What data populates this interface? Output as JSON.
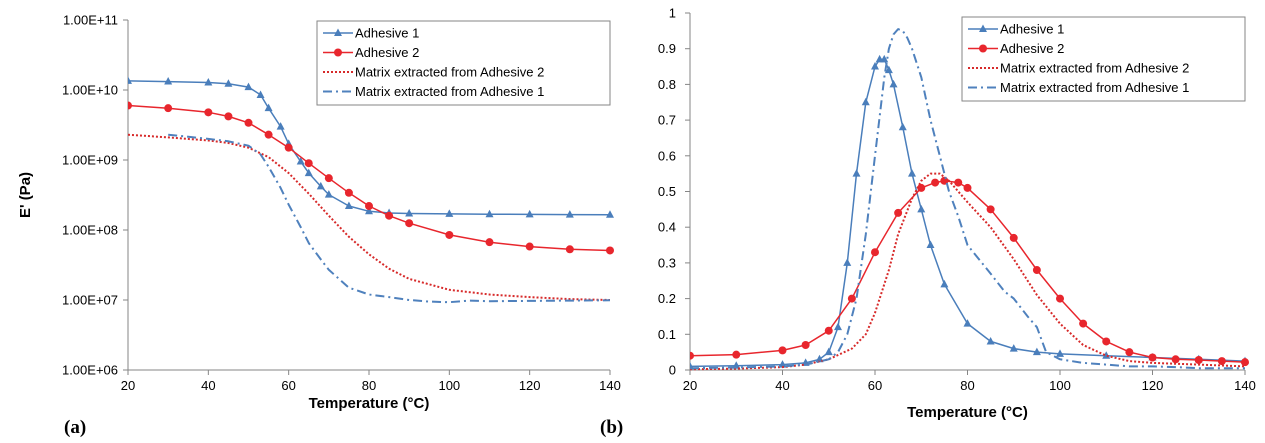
{
  "chart_data": [
    {
      "type": "line",
      "panel_label": "(a)",
      "title": "",
      "xlabel": "Temperature (°C)",
      "ylabel": "E' (Pa)",
      "yscale": "log",
      "xlim": [
        20,
        140
      ],
      "ylim": [
        1000000,
        100000000000
      ],
      "x_ticks": [
        20,
        40,
        60,
        80,
        100,
        120,
        140
      ],
      "x_tick_labels": [
        "20",
        "40",
        "60",
        "80",
        "100",
        "120",
        "140"
      ],
      "y_ticks": [
        1000000,
        10000000,
        100000000,
        1000000000,
        10000000000,
        100000000000
      ],
      "y_tick_labels": [
        "1.00E+06",
        "1.00E+07",
        "1.00E+08",
        "1.00E+09",
        "1.00E+10",
        "1.00E+11"
      ],
      "grid": false,
      "legend_position": "top-right",
      "series": [
        {
          "name": "Adhesive 1",
          "color": "#4a7ebb",
          "style": "solid",
          "marker": "triangle",
          "x": [
            20,
            30,
            40,
            45,
            50,
            53,
            55,
            58,
            60,
            63,
            65,
            68,
            70,
            75,
            80,
            85,
            90,
            100,
            110,
            120,
            130,
            140
          ],
          "y": [
            13500000000,
            13200000000,
            12800000000,
            12300000000,
            11000000000,
            8500000000,
            5500000000,
            3000000000,
            1700000000,
            950000000,
            650000000,
            420000000,
            320000000,
            220000000,
            185000000,
            175000000,
            172000000,
            170000000,
            168000000,
            167000000,
            166000000,
            165000000
          ]
        },
        {
          "name": "Adhesive 2",
          "color": "#e8262d",
          "style": "solid",
          "marker": "circle",
          "x": [
            20,
            30,
            40,
            45,
            50,
            55,
            60,
            65,
            70,
            75,
            80,
            85,
            90,
            100,
            110,
            120,
            130,
            140
          ],
          "y": [
            6000000000,
            5500000000,
            4800000000,
            4200000000,
            3400000000,
            2300000000,
            1500000000,
            900000000,
            550000000,
            340000000,
            220000000,
            160000000,
            125000000,
            85000000,
            67000000,
            58000000,
            53000000,
            51000000
          ]
        },
        {
          "name": "Matrix extracted from Adhesive 2",
          "color": "#d72a2a",
          "style": "dotted",
          "marker": "none",
          "x": [
            20,
            30,
            40,
            45,
            50,
            55,
            60,
            65,
            70,
            75,
            80,
            85,
            90,
            100,
            110,
            120,
            130,
            140
          ],
          "y": [
            2300000000,
            2100000000,
            1900000000,
            1750000000,
            1500000000,
            1100000000,
            650000000,
            330000000,
            160000000,
            80000000,
            45000000,
            28000000,
            20000000,
            14000000,
            12000000,
            11000000,
            10300000,
            10000000
          ]
        },
        {
          "name": "Matrix extracted from Adhesive 1",
          "color": "#4f81bd",
          "style": "dashdot",
          "marker": "none",
          "x": [
            30,
            40,
            45,
            50,
            53,
            55,
            58,
            60,
            63,
            65,
            68,
            70,
            75,
            80,
            85,
            90,
            95,
            100,
            105,
            110,
            120,
            130,
            140
          ],
          "y": [
            2300000000,
            2000000000,
            1850000000,
            1600000000,
            1200000000,
            800000000,
            400000000,
            230000000,
            110000000,
            65000000,
            38000000,
            27000000,
            15000000,
            12000000,
            11000000,
            10000000,
            9500000,
            9300000,
            9800000,
            9600000,
            9700000,
            9800000,
            9900000
          ]
        }
      ]
    },
    {
      "type": "line",
      "panel_label": "(b)",
      "title": "",
      "xlabel": "Temperature (°C)",
      "ylabel": "",
      "yscale": "linear",
      "xlim": [
        20,
        140
      ],
      "ylim": [
        0,
        1
      ],
      "x_ticks": [
        20,
        40,
        60,
        80,
        100,
        120,
        140
      ],
      "x_tick_labels": [
        "20",
        "40",
        "60",
        "80",
        "100",
        "120",
        "140"
      ],
      "y_ticks": [
        0,
        0.1,
        0.2,
        0.3,
        0.4,
        0.5,
        0.6,
        0.7,
        0.8,
        0.9,
        1
      ],
      "y_tick_labels": [
        "0",
        "0.1",
        "0.2",
        "0.3",
        "0.4",
        "0.5",
        "0.6",
        "0.7",
        "0.8",
        "0.9",
        "1"
      ],
      "grid": false,
      "legend_position": "top-right",
      "series": [
        {
          "name": "Adhesive 1",
          "color": "#4a7ebb",
          "style": "solid",
          "marker": "triangle",
          "x": [
            20,
            30,
            40,
            45,
            48,
            50,
            52,
            54,
            56,
            58,
            60,
            61,
            62,
            63,
            64,
            66,
            68,
            70,
            72,
            75,
            80,
            85,
            90,
            95,
            100,
            110,
            120,
            130,
            140
          ],
          "y": [
            0.01,
            0.012,
            0.015,
            0.02,
            0.03,
            0.05,
            0.12,
            0.3,
            0.55,
            0.75,
            0.85,
            0.87,
            0.87,
            0.84,
            0.8,
            0.68,
            0.55,
            0.45,
            0.35,
            0.24,
            0.13,
            0.08,
            0.06,
            0.05,
            0.045,
            0.04,
            0.035,
            0.03,
            0.025
          ]
        },
        {
          "name": "Adhesive 2",
          "color": "#e8262d",
          "style": "solid",
          "marker": "circle",
          "x": [
            20,
            30,
            40,
            45,
            50,
            55,
            60,
            65,
            70,
            73,
            75,
            78,
            80,
            85,
            90,
            95,
            100,
            105,
            110,
            115,
            120,
            125,
            130,
            135,
            140
          ],
          "y": [
            0.04,
            0.043,
            0.055,
            0.07,
            0.11,
            0.2,
            0.33,
            0.44,
            0.51,
            0.525,
            0.53,
            0.525,
            0.51,
            0.45,
            0.37,
            0.28,
            0.2,
            0.13,
            0.08,
            0.05,
            0.035,
            0.03,
            0.028,
            0.025,
            0.022
          ]
        },
        {
          "name": "Matrix extracted from Adhesive 2",
          "color": "#d72a2a",
          "style": "dotted",
          "marker": "none",
          "x": [
            20,
            30,
            40,
            45,
            50,
            55,
            58,
            60,
            63,
            65,
            68,
            70,
            72,
            74,
            76,
            78,
            80,
            85,
            90,
            95,
            100,
            105,
            110,
            115,
            120,
            130,
            140
          ],
          "y": [
            0.002,
            0.004,
            0.008,
            0.015,
            0.03,
            0.06,
            0.1,
            0.16,
            0.28,
            0.38,
            0.48,
            0.53,
            0.55,
            0.55,
            0.53,
            0.5,
            0.47,
            0.4,
            0.31,
            0.21,
            0.13,
            0.07,
            0.04,
            0.025,
            0.02,
            0.015,
            0.01
          ]
        },
        {
          "name": "Matrix extracted from Adhesive 1",
          "color": "#4f81bd",
          "style": "dashdot",
          "marker": "none",
          "x": [
            20,
            30,
            40,
            45,
            50,
            52,
            54,
            56,
            58,
            60,
            62,
            63,
            64,
            65,
            66,
            67,
            68,
            70,
            72,
            74,
            76,
            78,
            80,
            85,
            88,
            90,
            93,
            95,
            97,
            100,
            105,
            110,
            115,
            120,
            125,
            130,
            135,
            140
          ],
          "y": [
            0.005,
            0.007,
            0.01,
            0.015,
            0.03,
            0.05,
            0.1,
            0.2,
            0.38,
            0.6,
            0.82,
            0.9,
            0.94,
            0.955,
            0.95,
            0.93,
            0.9,
            0.82,
            0.7,
            0.6,
            0.5,
            0.43,
            0.35,
            0.27,
            0.22,
            0.2,
            0.15,
            0.12,
            0.05,
            0.03,
            0.02,
            0.015,
            0.01,
            0.01,
            0.008,
            0.005,
            0.005,
            0.005
          ]
        }
      ]
    }
  ]
}
